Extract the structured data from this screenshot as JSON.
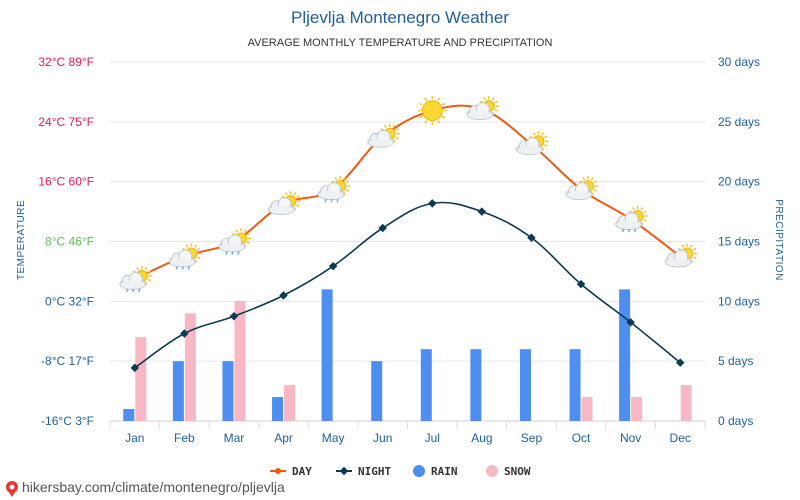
{
  "chart_data": {
    "type": "line+bar",
    "title": "Pljevlja Montenegro Weather",
    "subtitle": "AVERAGE MONTHLY TEMPERATURE AND PRECIPITATION",
    "categories": [
      "Jan",
      "Feb",
      "Mar",
      "Apr",
      "May",
      "Jun",
      "Jul",
      "Aug",
      "Sep",
      "Oct",
      "Nov",
      "Dec"
    ],
    "left_axis": {
      "label": "TEMPERATURE",
      "range_c": [
        -16,
        32
      ],
      "ticks": [
        {
          "value": 32,
          "label": "32°C 89°F",
          "color": "#e8175d"
        },
        {
          "value": 24,
          "label": "24°C 75°F",
          "color": "#e8175d"
        },
        {
          "value": 16,
          "label": "16°C 60°F",
          "color": "#e8175d"
        },
        {
          "value": 8,
          "label": "8°C 46°F",
          "color": "#5cb85c"
        },
        {
          "value": 0,
          "label": "0°C 32°F",
          "color": "#1f5f96"
        },
        {
          "value": -8,
          "label": "-8°C 17°F",
          "color": "#1f5f96"
        },
        {
          "value": -16,
          "label": "-16°C 3°F",
          "color": "#1f5f96"
        }
      ]
    },
    "right_axis": {
      "label": "PRECIPITATION",
      "range_days": [
        0,
        30
      ],
      "ticks": [
        {
          "value": 30,
          "label": "30 days"
        },
        {
          "value": 25,
          "label": "25 days"
        },
        {
          "value": 20,
          "label": "20 days"
        },
        {
          "value": 15,
          "label": "15 days"
        },
        {
          "value": 10,
          "label": "10 days"
        },
        {
          "value": 5,
          "label": "5 days"
        },
        {
          "value": 0,
          "label": "0 days"
        }
      ]
    },
    "series": [
      {
        "name": "DAY",
        "kind": "line",
        "axis": "left",
        "color": "#ee5b13",
        "values": [
          3,
          6,
          8,
          13,
          15,
          22,
          25.5,
          25.7,
          21,
          15,
          11,
          6
        ]
      },
      {
        "name": "NIGHT",
        "kind": "line",
        "axis": "left",
        "color": "#0d3a52",
        "values": [
          -8.9,
          -4.3,
          -2,
          0.8,
          4.7,
          9.8,
          13.1,
          12,
          8.5,
          2.3,
          -2.8,
          -8.2
        ]
      },
      {
        "name": "RAIN",
        "kind": "bar",
        "axis": "right",
        "color": "#4d8ef0",
        "values": [
          1,
          5,
          5,
          2,
          11,
          5,
          6,
          6,
          6,
          6,
          11,
          0
        ]
      },
      {
        "name": "SNOW",
        "kind": "bar",
        "axis": "right",
        "color": "#f7b7c4",
        "values": [
          7,
          9,
          10,
          3,
          0,
          0,
          0,
          0,
          0,
          2,
          2,
          3
        ]
      }
    ],
    "weather_icons": [
      "cloud-sun-rain",
      "cloud-sun-rain",
      "cloud-sun-rain",
      "cloud-sun",
      "cloud-sun-rain",
      "cloud-sun",
      "sun",
      "cloud-sun",
      "cloud-sun",
      "cloud-sun",
      "cloud-sun-rain",
      "cloud-sun"
    ],
    "legend": [
      {
        "name": "DAY",
        "color": "#ee5b13",
        "marker": "line-dot"
      },
      {
        "name": "NIGHT",
        "color": "#0d3a52",
        "marker": "line-diamond"
      },
      {
        "name": "RAIN",
        "color": "#4d8ef0",
        "marker": "circle"
      },
      {
        "name": "SNOW",
        "color": "#f7b7c4",
        "marker": "circle"
      }
    ]
  },
  "footer": {
    "text": "hikersbay.com/climate/montenegro/pljevlja",
    "icon": "map-pin-icon"
  }
}
